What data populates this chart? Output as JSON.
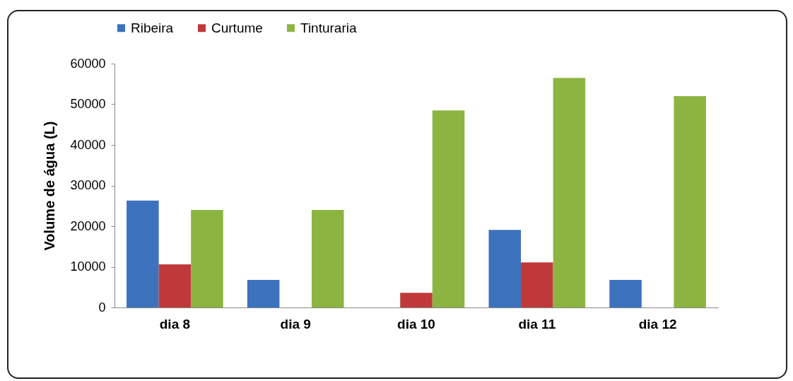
{
  "chart_data": {
    "type": "bar",
    "ylabel": "Volume de água (L)",
    "categories": [
      "dia 8",
      "dia 9",
      "dia 10",
      "dia 11",
      "dia 12"
    ],
    "series": [
      {
        "name": "Ribeira",
        "color": "#3d72bd",
        "values": [
          26300,
          6800,
          null,
          19100,
          6800
        ]
      },
      {
        "name": "Curtume",
        "color": "#c0393a",
        "values": [
          10600,
          null,
          3600,
          11100,
          null
        ]
      },
      {
        "name": "Tinturaria",
        "color": "#8cb441",
        "values": [
          24000,
          24000,
          48500,
          56500,
          52000
        ]
      }
    ],
    "ylim": [
      0,
      60000
    ],
    "yticks": [
      0,
      10000,
      20000,
      30000,
      40000,
      50000,
      60000
    ],
    "grid": false,
    "legend": "top"
  }
}
